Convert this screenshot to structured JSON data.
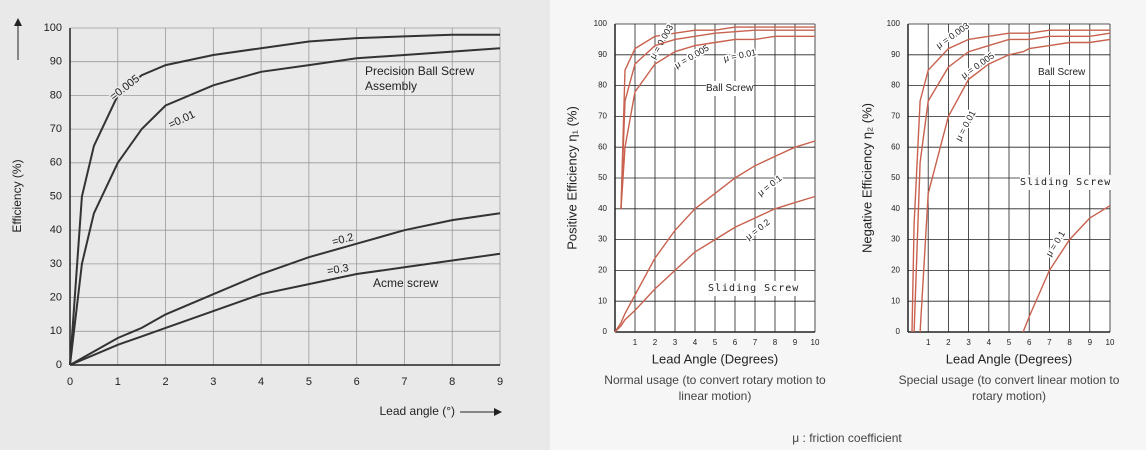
{
  "chart_data": [
    {
      "type": "line",
      "ylabel": "Efficiency (%)",
      "xlabel": "Lead angle (°)",
      "x": [
        0,
        0.25,
        0.5,
        1,
        1.5,
        2,
        3,
        4,
        5,
        6,
        7,
        8,
        9
      ],
      "xlim": [
        0,
        9
      ],
      "xticks": [
        0,
        1,
        2,
        3,
        4,
        5,
        6,
        7,
        8,
        9
      ],
      "ylim": [
        0,
        100
      ],
      "yticks": [
        0,
        10,
        20,
        30,
        40,
        50,
        60,
        70,
        80,
        90,
        100
      ],
      "grid": true,
      "series": [
        {
          "name": "=0.005",
          "color": "#333333",
          "values": [
            0,
            50,
            65,
            80,
            86,
            89,
            92,
            94,
            96,
            97,
            97.5,
            98,
            98
          ]
        },
        {
          "name": "=0.01",
          "color": "#333333",
          "values": [
            0,
            30,
            45,
            60,
            70,
            77,
            83,
            87,
            89,
            91,
            92,
            93,
            94
          ]
        },
        {
          "name": "=0.2",
          "color": "#333333",
          "values": [
            0,
            2,
            4,
            8,
            11,
            15,
            21,
            27,
            32,
            36,
            40,
            43,
            45
          ]
        },
        {
          "name": "=0.3",
          "color": "#333333",
          "values": [
            0,
            1.5,
            3,
            6,
            8.5,
            11,
            16,
            21,
            24,
            27,
            29,
            31,
            33
          ]
        }
      ],
      "annotations": [
        "Precision Ball Screw Assembly",
        "Acme screw"
      ]
    },
    {
      "type": "line",
      "ylabel": "Positive Efficiency η₁ (%)",
      "xlabel": "Lead Angle (Degrees)",
      "caption": "Normal usage (to convert rotary motion to linear motion)",
      "x": [
        0,
        0.3,
        0.5,
        1,
        2,
        3,
        4,
        5,
        6,
        7,
        8,
        9,
        10
      ],
      "xlim": [
        0,
        10
      ],
      "xticks": [
        1,
        2,
        3,
        4,
        5,
        6,
        7,
        8,
        9,
        10
      ],
      "ylim": [
        0,
        100
      ],
      "yticks": [
        0,
        10,
        20,
        30,
        40,
        50,
        60,
        70,
        80,
        90,
        100
      ],
      "grid": true,
      "series": [
        {
          "name": "μ = 0.003",
          "color": "#c8614e",
          "values": [
            null,
            40,
            85,
            92,
            96,
            97,
            98,
            98,
            99,
            99,
            99,
            99,
            99
          ]
        },
        {
          "name": "μ = 0.005",
          "color": "#c8614e",
          "values": [
            null,
            40,
            75,
            87,
            93,
            95,
            96,
            97,
            97.5,
            98,
            98,
            98,
            98
          ]
        },
        {
          "name": "μ = 0.01",
          "color": "#c8614e",
          "values": [
            null,
            40,
            60,
            78,
            87,
            91,
            93,
            94,
            95,
            95,
            96,
            96,
            96
          ]
        },
        {
          "name": "μ = 0.1",
          "color": "#c8614e",
          "values": [
            0,
            3,
            6,
            12,
            24,
            33,
            40,
            45,
            50,
            54,
            57,
            60,
            62
          ]
        },
        {
          "name": "μ = 0.2",
          "color": "#c8614e",
          "values": [
            0,
            2,
            4,
            7,
            14,
            20,
            26,
            30,
            34,
            37,
            40,
            42,
            44
          ]
        }
      ],
      "annotations": [
        "Ball Screw",
        "Sliding Screw"
      ]
    },
    {
      "type": "line",
      "ylabel": "Negative Efficiency η₂ (%)",
      "xlabel": "Lead Angle (Degrees)",
      "caption": "Special usage (to convert linear motion to rotary motion)",
      "x": [
        0.2,
        0.3,
        0.6,
        1,
        2,
        3,
        4,
        5,
        5.7,
        6,
        7,
        8,
        9,
        10
      ],
      "xlim": [
        0,
        10
      ],
      "xticks": [
        1,
        2,
        3,
        4,
        5,
        6,
        7,
        8,
        9,
        10
      ],
      "ylim": [
        0,
        100
      ],
      "yticks": [
        0,
        10,
        20,
        30,
        40,
        50,
        60,
        70,
        80,
        90,
        100
      ],
      "grid": true,
      "series": [
        {
          "name": "μ = 0.003",
          "color": "#c8614e",
          "values": [
            0,
            35,
            75,
            85,
            92,
            95,
            96,
            97,
            97,
            97,
            98,
            98,
            98,
            98
          ]
        },
        {
          "name": "μ = 0.005",
          "color": "#c8614e",
          "values": [
            null,
            0,
            55,
            75,
            86,
            91,
            93,
            95,
            95,
            95,
            96,
            96,
            96,
            97
          ]
        },
        {
          "name": "μ = 0.01",
          "color": "#c8614e",
          "values": [
            null,
            null,
            0,
            45,
            70,
            82,
            87,
            90,
            91,
            92,
            93,
            94,
            94,
            95
          ]
        },
        {
          "name": "μ = 0.1",
          "color": "#c8614e",
          "values": [
            null,
            null,
            null,
            null,
            null,
            null,
            null,
            null,
            0,
            5,
            20,
            30,
            37,
            41
          ]
        }
      ],
      "annotations": [
        "Ball Screw",
        "Sliding Screw"
      ]
    }
  ],
  "note": "μ : friction coefficient"
}
